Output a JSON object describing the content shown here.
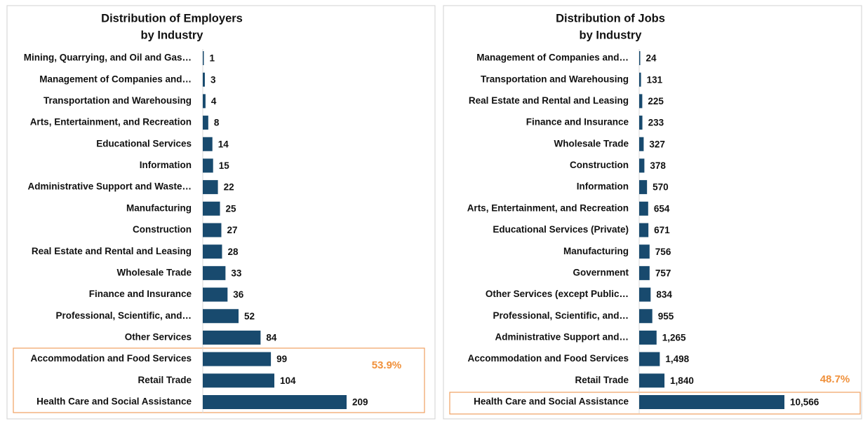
{
  "chart_data": [
    {
      "type": "bar",
      "orientation": "horizontal",
      "title": [
        "Distribution of Employers",
        "by Industry"
      ],
      "color": "#184a6e",
      "categories": [
        "Mining, Quarrying, and Oil and Gas…",
        "Management of Companies and…",
        "Transportation and Warehousing",
        "Arts, Entertainment, and Recreation",
        "Educational Services",
        "Information",
        "Administrative Support and Waste…",
        "Manufacturing",
        "Construction",
        "Real Estate and Rental and Leasing",
        "Wholesale Trade",
        "Finance and Insurance",
        "Professional, Scientific, and…",
        "Other Services",
        "Accommodation and Food Services",
        "Retail Trade",
        "Health Care and Social Assistance"
      ],
      "values": [
        1,
        3,
        4,
        8,
        14,
        15,
        22,
        25,
        27,
        28,
        33,
        36,
        52,
        84,
        99,
        104,
        209
      ],
      "annotation": "53.9%"
    },
    {
      "type": "bar",
      "orientation": "horizontal",
      "title": [
        "Distribution of Jobs",
        "by Industry"
      ],
      "color": "#184a6e",
      "categories": [
        "Management of Companies and…",
        "Transportation and Warehousing",
        "Real Estate and Rental and Leasing",
        "Finance and Insurance",
        "Wholesale Trade",
        "Construction",
        "Information",
        "Arts, Entertainment, and Recreation",
        "Educational Services (Private)",
        "Manufacturing",
        "Government",
        "Other Services (except Public…",
        "Professional, Scientific, and…",
        "Administrative Support and…",
        "Accommodation and Food Services",
        "Retail Trade",
        "Health Care and Social Assistance"
      ],
      "values": [
        24,
        131,
        225,
        233,
        327,
        378,
        570,
        654,
        671,
        756,
        757,
        834,
        955,
        1265,
        1498,
        1840,
        10566
      ],
      "value_labels": [
        "24",
        "131",
        "225",
        "233",
        "327",
        "378",
        "570",
        "654",
        "671",
        "756",
        "757",
        "834",
        "955",
        "1,265",
        "1,498",
        "1,840",
        "10,566"
      ],
      "annotation": "48.7%"
    }
  ]
}
